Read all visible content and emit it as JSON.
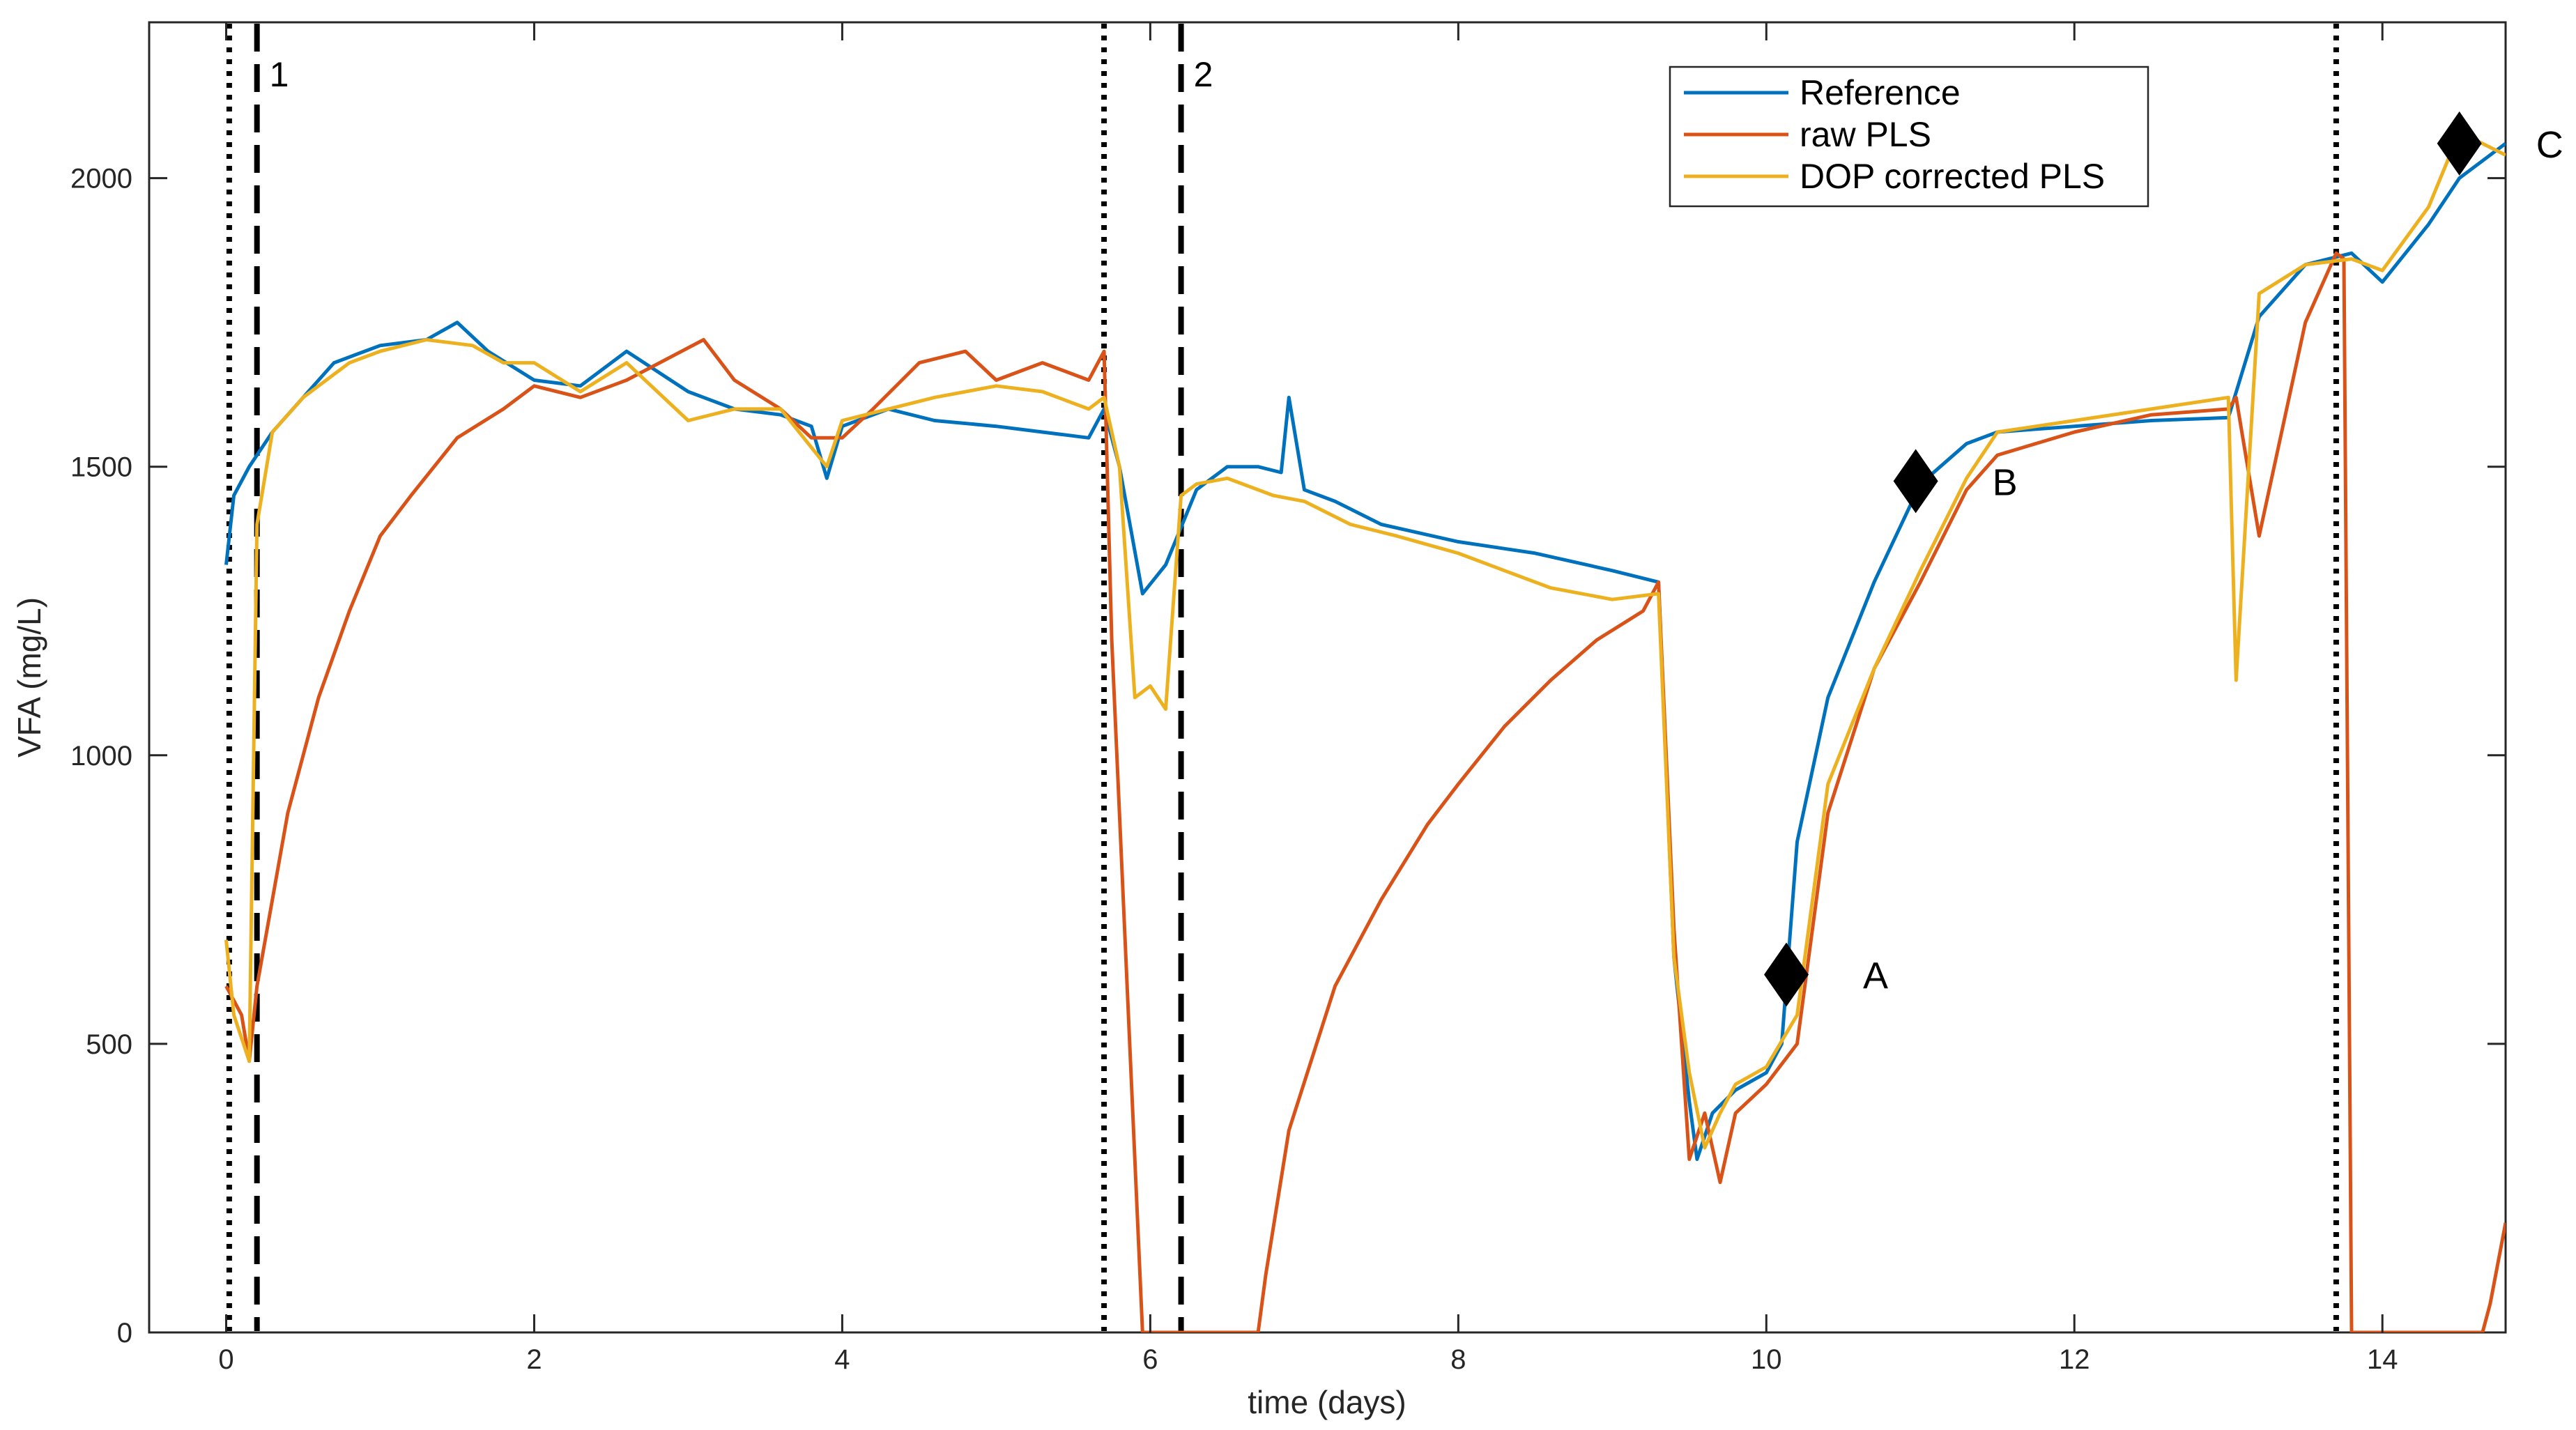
{
  "chart_data": {
    "type": "line",
    "title": "",
    "xlabel": "time (days)",
    "ylabel": "VFA (mg/L)",
    "xlim": [
      -0.5,
      14.8
    ],
    "ylim": [
      0,
      2270
    ],
    "xticks": [
      0,
      2,
      4,
      6,
      8,
      10,
      12,
      14
    ],
    "yticks": [
      0,
      500,
      1000,
      1500,
      2000
    ],
    "xtick_labels": [
      "0",
      "2",
      "4",
      "6",
      "8",
      "10",
      "12",
      "14"
    ],
    "ytick_labels": [
      "0",
      "500",
      "1000",
      "1500",
      "2000"
    ],
    "grid": false,
    "legend_position": "top-right",
    "series": [
      {
        "name": "Reference",
        "color": "#0072BD",
        "x": [
          0.0,
          0.05,
          0.15,
          0.3,
          0.5,
          0.7,
          1.0,
          1.3,
          1.5,
          1.7,
          2.0,
          2.3,
          2.6,
          3.0,
          3.3,
          3.6,
          3.8,
          3.9,
          4.0,
          4.3,
          4.6,
          5.0,
          5.3,
          5.6,
          5.7,
          5.8,
          5.95,
          6.1,
          6.3,
          6.5,
          6.7,
          6.85,
          6.9,
          7.0,
          7.2,
          7.5,
          8.0,
          8.5,
          9.0,
          9.3,
          9.4,
          9.5,
          9.55,
          9.65,
          9.8,
          10.0,
          10.1,
          10.2,
          10.4,
          10.7,
          11.0,
          11.3,
          11.5,
          12.0,
          12.5,
          13.0,
          13.2,
          13.5,
          13.8,
          14.0,
          14.3,
          14.5,
          14.8
        ],
        "y": [
          1330,
          1450,
          1500,
          1560,
          1620,
          1680,
          1710,
          1720,
          1750,
          1700,
          1650,
          1640,
          1700,
          1630,
          1600,
          1590,
          1570,
          1480,
          1570,
          1600,
          1580,
          1570,
          1560,
          1550,
          1600,
          1500,
          1280,
          1330,
          1460,
          1500,
          1500,
          1490,
          1620,
          1460,
          1440,
          1400,
          1370,
          1350,
          1320,
          1300,
          650,
          400,
          300,
          380,
          420,
          450,
          500,
          850,
          1100,
          1300,
          1470,
          1540,
          1560,
          1570,
          1580,
          1585,
          1760,
          1850,
          1870,
          1820,
          1920,
          2000,
          2060
        ]
      },
      {
        "name": "raw PLS",
        "color": "#D95319",
        "x": [
          0.0,
          0.1,
          0.15,
          0.2,
          0.3,
          0.4,
          0.6,
          0.8,
          1.0,
          1.2,
          1.5,
          1.8,
          2.0,
          2.3,
          2.6,
          3.1,
          3.3,
          3.6,
          3.8,
          4.0,
          4.2,
          4.5,
          4.8,
          5.0,
          5.3,
          5.6,
          5.7,
          5.75,
          5.85,
          5.95,
          6.7,
          6.75,
          6.9,
          7.2,
          7.5,
          7.8,
          8.0,
          8.3,
          8.6,
          8.9,
          9.2,
          9.3,
          9.4,
          9.5,
          9.6,
          9.7,
          9.8,
          10.0,
          10.2,
          10.4,
          10.7,
          11.0,
          11.3,
          11.5,
          12.0,
          12.5,
          13.0,
          13.05,
          13.2,
          13.5,
          13.7,
          13.75,
          13.8,
          14.0,
          14.3,
          14.5,
          14.65,
          14.7,
          14.8
        ],
        "y": [
          600,
          550,
          470,
          600,
          750,
          900,
          1100,
          1250,
          1380,
          1450,
          1550,
          1600,
          1640,
          1620,
          1650,
          1720,
          1650,
          1600,
          1550,
          1550,
          1600,
          1680,
          1700,
          1650,
          1680,
          1650,
          1700,
          1200,
          600,
          0,
          0,
          100,
          350,
          600,
          750,
          880,
          950,
          1050,
          1130,
          1200,
          1250,
          1300,
          700,
          300,
          380,
          260,
          380,
          430,
          500,
          900,
          1150,
          1300,
          1460,
          1520,
          1560,
          1590,
          1600,
          1620,
          1380,
          1750,
          1870,
          1860,
          0,
          0,
          0,
          0,
          0,
          50,
          190
        ]
      },
      {
        "name": "DOP corrected PLS",
        "color": "#EDB120",
        "x": [
          0.0,
          0.05,
          0.15,
          0.2,
          0.3,
          0.5,
          0.8,
          1.0,
          1.3,
          1.6,
          1.8,
          2.0,
          2.3,
          2.6,
          3.0,
          3.3,
          3.6,
          3.9,
          4.0,
          4.3,
          4.6,
          5.0,
          5.3,
          5.6,
          5.7,
          5.8,
          5.9,
          6.0,
          6.1,
          6.2,
          6.3,
          6.5,
          6.8,
          7.0,
          7.3,
          7.6,
          8.0,
          8.3,
          8.6,
          9.0,
          9.3,
          9.4,
          9.5,
          9.6,
          9.7,
          9.8,
          10.0,
          10.2,
          10.4,
          10.7,
          11.0,
          11.3,
          11.5,
          12.0,
          12.5,
          13.0,
          13.05,
          13.2,
          13.5,
          13.8,
          14.0,
          14.3,
          14.5,
          14.8
        ],
        "y": [
          680,
          550,
          470,
          1400,
          1560,
          1620,
          1680,
          1700,
          1720,
          1710,
          1680,
          1680,
          1630,
          1680,
          1580,
          1600,
          1600,
          1500,
          1580,
          1600,
          1620,
          1640,
          1630,
          1600,
          1620,
          1500,
          1100,
          1120,
          1080,
          1450,
          1470,
          1480,
          1450,
          1440,
          1400,
          1380,
          1350,
          1320,
          1290,
          1270,
          1280,
          650,
          450,
          320,
          380,
          430,
          460,
          550,
          950,
          1150,
          1320,
          1480,
          1560,
          1580,
          1600,
          1620,
          1130,
          1800,
          1850,
          1860,
          1840,
          1950,
          2080,
          2040
        ]
      }
    ],
    "vertical_lines": [
      {
        "x": 0.02,
        "style": "dotted",
        "label": ""
      },
      {
        "x": 0.2,
        "style": "dashed",
        "label": "1"
      },
      {
        "x": 5.7,
        "style": "dotted",
        "label": ""
      },
      {
        "x": 6.2,
        "style": "dashed",
        "label": "2"
      },
      {
        "x": 13.7,
        "style": "dotted",
        "label": ""
      }
    ],
    "markers": [
      {
        "x": 10.13,
        "y": 620,
        "label": "A"
      },
      {
        "x": 10.97,
        "y": 1475,
        "label": "B"
      },
      {
        "x": 14.5,
        "y": 2060,
        "label": "C"
      }
    ]
  }
}
